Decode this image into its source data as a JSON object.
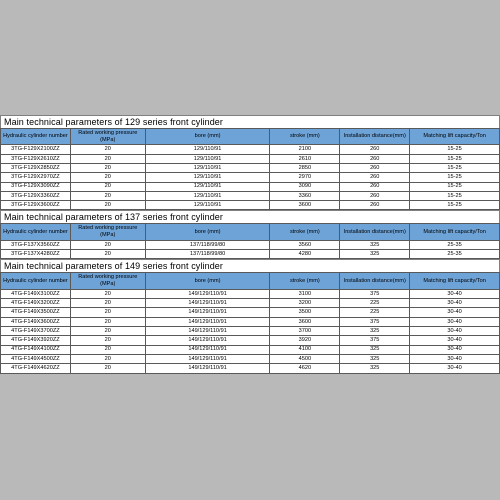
{
  "sections": [
    {
      "title": "Main technical parameters of 129 series front cylinder",
      "columns": [
        "Hydraulic cylinder number",
        "Rated working pressure (MPa)",
        "bore (mm)",
        "stroke (mm)",
        "Installation distance(mm)",
        "Matching lift capacity/Ton"
      ],
      "rows": [
        [
          "3TG-F129X2100ZZ",
          "20",
          "129/110/91",
          "2100",
          "260",
          "15-25"
        ],
        [
          "3TG-F129X2610ZZ",
          "20",
          "129/110/91",
          "2610",
          "260",
          "15-25"
        ],
        [
          "3TG-F129X2850ZZ",
          "20",
          "129/110/91",
          "2850",
          "260",
          "15-25"
        ],
        [
          "3TG-F129X2970ZZ",
          "20",
          "129/110/91",
          "2970",
          "260",
          "15-25"
        ],
        [
          "3TG-F129X3090ZZ",
          "20",
          "129/110/91",
          "3090",
          "260",
          "15-25"
        ],
        [
          "3TG-F129X3360ZZ",
          "20",
          "129/110/91",
          "3360",
          "260",
          "15-25"
        ],
        [
          "3TG-F129X3600ZZ",
          "20",
          "129/110/91",
          "3600",
          "260",
          "15-25"
        ]
      ]
    },
    {
      "title": "Main technical parameters of 137 series front cylinder",
      "columns": [
        "Hydraulic cylinder number",
        "Rated working pressure (MPa)",
        "bore (mm)",
        "stroke (mm)",
        "Installation distance(mm)",
        "Matching lift capacity/Ton"
      ],
      "rows": [
        [
          "3TG-F137X3560ZZ",
          "20",
          "137/118/99/80",
          "3560",
          "325",
          "25-35"
        ],
        [
          "3TG-F137X4280ZZ",
          "20",
          "137/118/99/80",
          "4280",
          "325",
          "25-35"
        ]
      ]
    },
    {
      "title": "Main technical parameters of 149 series front cylinder",
      "columns": [
        "Hydraulic cylinder number",
        "Rated working pressure (MPa)",
        "bore (mm)",
        "stroke (mm)",
        "Installation distance(mm)",
        "Matching lift capacity/Ton"
      ],
      "rows": [
        [
          "4TG-F149X3100ZZ",
          "20",
          "149/129/110/91",
          "3100",
          "375",
          "30-40"
        ],
        [
          "4TG-F149X3200ZZ",
          "20",
          "149/129/110/91",
          "3200",
          "225",
          "30-40"
        ],
        [
          "4TG-F149X3500ZZ",
          "20",
          "149/129/110/91",
          "3500",
          "225",
          "30-40"
        ],
        [
          "4TG-F149X3600ZZ",
          "20",
          "149/129/110/91",
          "3600",
          "375",
          "30-40"
        ],
        [
          "4TG-F149X3700ZZ",
          "20",
          "149/129/110/91",
          "3700",
          "325",
          "30-40"
        ],
        [
          "4TG-F149X3920ZZ",
          "20",
          "149/129/110/91",
          "3920",
          "375",
          "30-40"
        ],
        [
          "4TG-F149X4100ZZ",
          "20",
          "149/129/110/91",
          "4100",
          "325",
          "30-40"
        ],
        [
          "4TG-F149X4500ZZ",
          "20",
          "149/129/110/91",
          "4500",
          "325",
          "30-40"
        ],
        [
          "4TG-F149X4620ZZ",
          "20",
          "149/129/110/91",
          "4620",
          "325",
          "30-40"
        ]
      ]
    }
  ],
  "style": {
    "header_bg": "#6ea3d8",
    "cell_bg": "#ffffff",
    "border_color": "#595959",
    "page_bg": "#b9b9b9",
    "title_fontsize": 9,
    "cell_fontsize": 5.6,
    "col_widths_pct": [
      14,
      15,
      25,
      14,
      14,
      18
    ]
  }
}
